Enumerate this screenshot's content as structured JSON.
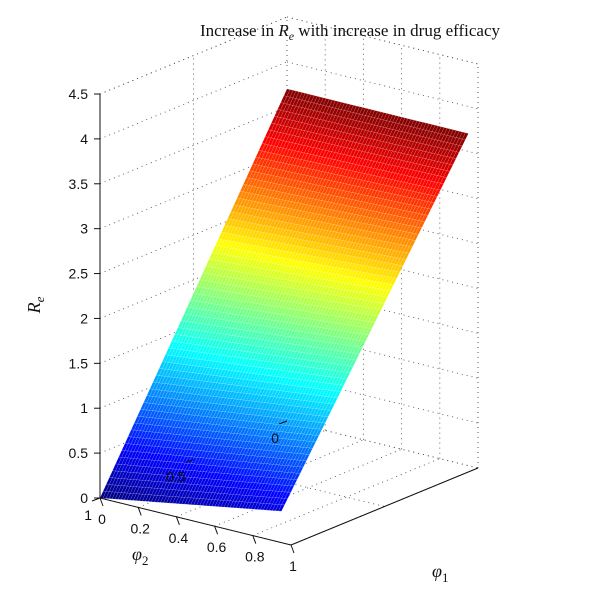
{
  "chart_data": {
    "type": "surface",
    "title_prefix": "Increase in ",
    "title_var": "R",
    "title_sub": "e",
    "title_suffix": " with increase in drug efficacy",
    "xlabel_var": "φ",
    "xlabel_sub": "1",
    "ylabel_var": "φ",
    "ylabel_sub": "2",
    "zlabel_var": "R",
    "zlabel_sub": "e",
    "x_ticks": [
      "0",
      "0.2",
      "0.4",
      "0.6",
      "0.8",
      "1"
    ],
    "y_ticks": [
      "0",
      "0.5",
      "1"
    ],
    "z_ticks": [
      "0",
      "0.5",
      "1",
      "1.5",
      "2",
      "2.5",
      "3",
      "3.5",
      "4",
      "4.5"
    ],
    "xlim": [
      0,
      1
    ],
    "ylim": [
      0,
      1
    ],
    "zlim": [
      0,
      4.5
    ],
    "grid": true,
    "colormap": "jet",
    "surface": {
      "phi1": [
        0,
        0.1,
        0.2,
        0.3,
        0.4,
        0.5,
        0.6,
        0.7,
        0.8,
        0.9,
        0.95
      ],
      "phi2": [
        0,
        0.1,
        0.2,
        0.3,
        0.4,
        0.5,
        0.6,
        0.7,
        0.8,
        0.9,
        0.95
      ],
      "corners": [
        {
          "phi1": 0,
          "phi2": 1,
          "Re": 0.0
        },
        {
          "phi1": 0.95,
          "phi2": 1,
          "Re": 0.35
        },
        {
          "phi1": 0,
          "phi2": 0,
          "Re": 3.7
        },
        {
          "phi1": 0.95,
          "phi2": 0,
          "Re": 3.7
        }
      ]
    }
  }
}
